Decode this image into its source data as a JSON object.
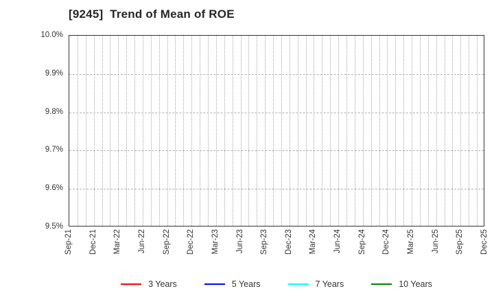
{
  "chart": {
    "title": "[9245]  Trend of Mean of ROE",
    "y_axis": {
      "tick_labels": [
        "10.0%",
        "9.9%",
        "9.8%",
        "9.7%",
        "9.6%",
        "9.5%"
      ]
    },
    "x_axis": {
      "tick_labels": [
        "Sep-21",
        "Dec-21",
        "Mar-22",
        "Jun-22",
        "Sep-22",
        "Dec-22",
        "Mar-23",
        "Jun-23",
        "Sep-23",
        "Dec-23",
        "Mar-24",
        "Jun-24",
        "Sep-24",
        "Dec-24",
        "Mar-25",
        "Jun-25",
        "Sep-25",
        "Dec-25"
      ],
      "minor_gridlines_per_interval": 3
    },
    "legend": [
      {
        "label": "3 Years",
        "color": "#ff0000"
      },
      {
        "label": "5 Years",
        "color": "#0000ff"
      },
      {
        "label": "7 Years",
        "color": "#00ffff"
      },
      {
        "label": "10 Years",
        "color": "#008000"
      }
    ]
  },
  "chart_data": {
    "type": "line",
    "title": "[9245]  Trend of Mean of ROE",
    "x": [
      "Sep-21",
      "Dec-21",
      "Mar-22",
      "Jun-22",
      "Sep-22",
      "Dec-22",
      "Mar-23",
      "Jun-23",
      "Sep-23",
      "Dec-23",
      "Mar-24",
      "Jun-24",
      "Sep-24",
      "Dec-24",
      "Mar-25",
      "Jun-25",
      "Sep-25",
      "Dec-25"
    ],
    "series": [
      {
        "name": "3 Years",
        "color": "#ff0000",
        "values": []
      },
      {
        "name": "5 Years",
        "color": "#0000ff",
        "values": []
      },
      {
        "name": "7 Years",
        "color": "#00ffff",
        "values": []
      },
      {
        "name": "10 Years",
        "color": "#008000",
        "values": []
      }
    ],
    "xlabel": "",
    "ylabel": "",
    "y_unit": "%",
    "ylim": [
      9.5,
      10.0
    ],
    "y_ticks": [
      9.5,
      9.6,
      9.7,
      9.8,
      9.9,
      10.0
    ],
    "grid": true,
    "legend_position": "bottom center"
  }
}
